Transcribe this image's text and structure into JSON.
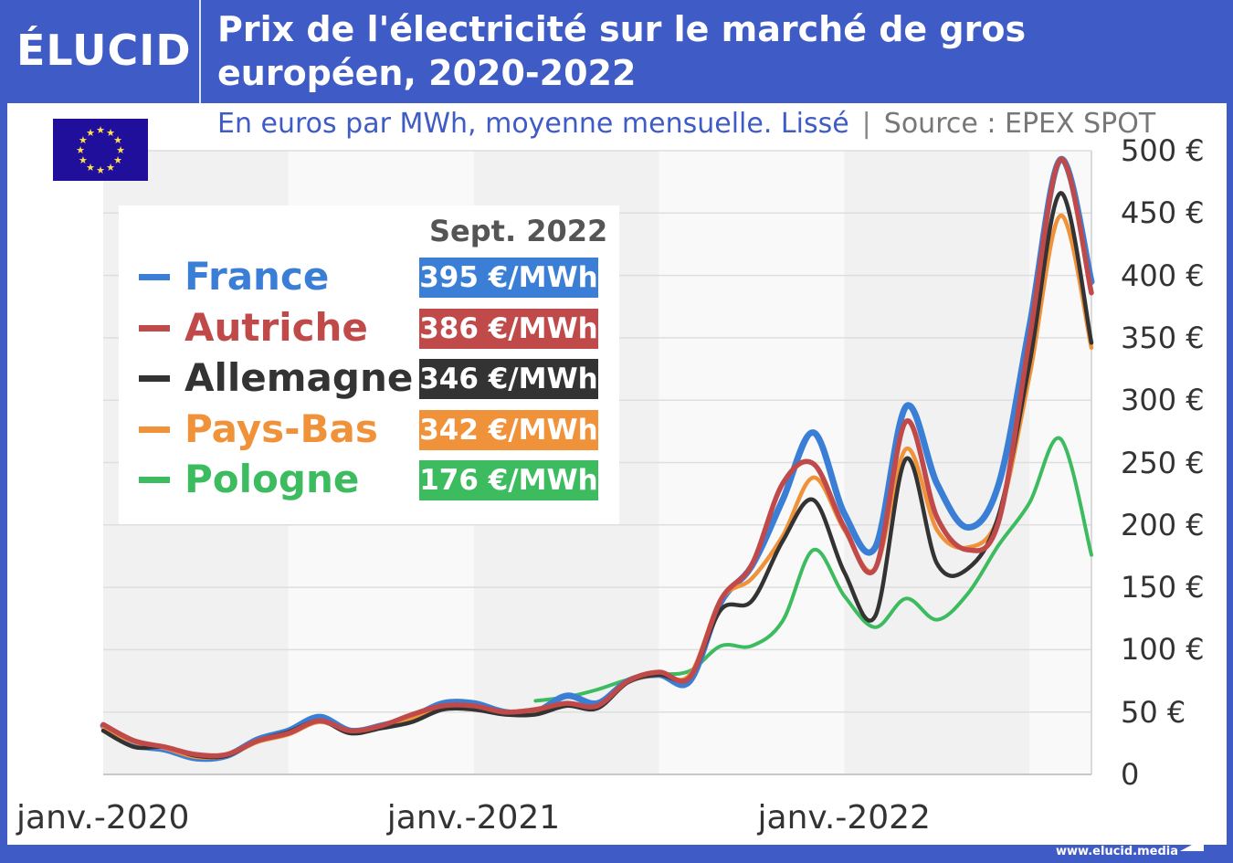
{
  "header": {
    "logo": "ÉLUCID",
    "title": "Prix de l'électricité sur le marché de gros européen, 2020-2022",
    "subtitle": "En euros par MWh, moyenne mensuelle. Lissé",
    "source": "Source : EPEX SPOT",
    "flag_icon": "eu-flag-icon"
  },
  "footer": {
    "url": "www.elucid.media"
  },
  "legend": {
    "heading": "Sept. 2022",
    "items": [
      {
        "name": "France",
        "value": "395 €/MWh",
        "color": "#3a7fd5"
      },
      {
        "name": "Autriche",
        "value": "386 €/MWh",
        "color": "#c0494a"
      },
      {
        "name": "Allemagne",
        "value": "346 €/MWh",
        "color": "#333333"
      },
      {
        "name": "Pays-Bas",
        "value": "342 €/MWh",
        "color": "#f0923a"
      },
      {
        "name": "Pologne",
        "value": "176 €/MWh",
        "color": "#3dbb5f"
      }
    ]
  },
  "chart_data": {
    "type": "line",
    "title": "Prix de l'électricité sur le marché de gros européen, 2020-2022",
    "ylabel": "",
    "xlabel": "",
    "ylim": [
      0,
      500
    ],
    "yaxis_side": "right",
    "y_ticks": [
      "0",
      "50 €",
      "100 €",
      "150 €",
      "200 €",
      "250 €",
      "300 €",
      "350 €",
      "400 €",
      "450 €",
      "500 €"
    ],
    "x_ticks": [
      "janv.-2020",
      "janv.-2021",
      "janv.-2022"
    ],
    "x_start": "2020-01",
    "x_end": "2022-09",
    "x_frequency": "monthly",
    "grid": true,
    "legend_position": "top-left",
    "series": [
      {
        "name": "France",
        "color": "#3a7fd5",
        "values": [
          39,
          24,
          20,
          13,
          15,
          28,
          35,
          46,
          35,
          39,
          46,
          57,
          57,
          50,
          50,
          63,
          57,
          75,
          80,
          75,
          138,
          167,
          220,
          274,
          209,
          182,
          295,
          233,
          198,
          233,
          360,
          493,
          395
        ]
      },
      {
        "name": "Autriche",
        "color": "#c0494a",
        "values": [
          40,
          27,
          22,
          16,
          16,
          27,
          33,
          43,
          35,
          39,
          48,
          55,
          55,
          50,
          52,
          57,
          55,
          75,
          82,
          78,
          140,
          168,
          233,
          249,
          198,
          165,
          283,
          206,
          180,
          203,
          350,
          493,
          386
        ]
      },
      {
        "name": "Allemagne",
        "color": "#333333",
        "values": [
          35,
          22,
          22,
          15,
          15,
          27,
          34,
          43,
          33,
          37,
          42,
          52,
          52,
          48,
          48,
          55,
          53,
          74,
          80,
          78,
          132,
          139,
          187,
          220,
          162,
          127,
          253,
          169,
          165,
          208,
          330,
          466,
          346
        ]
      },
      {
        "name": "Pays-Bas",
        "color": "#f0923a",
        "values": [
          37,
          26,
          21,
          14,
          15,
          26,
          32,
          42,
          35,
          38,
          45,
          53,
          54,
          48,
          50,
          57,
          55,
          74,
          80,
          80,
          140,
          157,
          191,
          238,
          196,
          165,
          261,
          196,
          182,
          207,
          320,
          448,
          342
        ]
      },
      {
        "name": "Pologne",
        "color": "#3dbb5f",
        "values": [
          null,
          null,
          null,
          null,
          null,
          null,
          null,
          null,
          null,
          null,
          null,
          null,
          null,
          null,
          59,
          62,
          68,
          76,
          80,
          83,
          103,
          103,
          123,
          180,
          143,
          118,
          141,
          124,
          145,
          184,
          218,
          269,
          176
        ]
      }
    ]
  }
}
